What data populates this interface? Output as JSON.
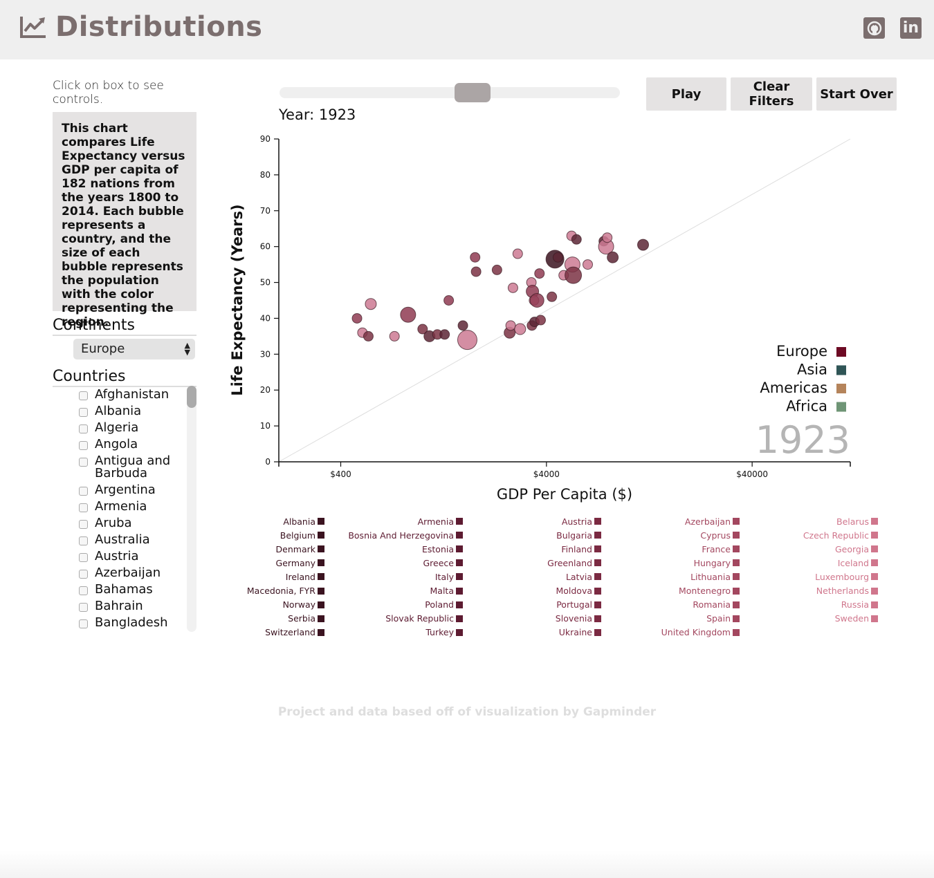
{
  "header": {
    "title": "Distributions",
    "linkedin_label": "in"
  },
  "sidebar": {
    "hint": "Click on box to see controls.",
    "description": "This chart compares Life Expectancy versus GDP per capita of 182 nations from the years 1800 to 2014. Each bubble represents a country, and the size of each bubble represents the population with the color representing the region.",
    "continents_title": "Continents",
    "continent_selected": "Europe",
    "countries_title": "Countries",
    "countries": [
      "Afghanistan",
      "Albania",
      "Algeria",
      "Angola",
      "Antigua and Barbuda",
      "Argentina",
      "Armenia",
      "Aruba",
      "Australia",
      "Austria",
      "Azerbaijan",
      "Bahamas",
      "Bahrain",
      "Bangladesh"
    ]
  },
  "controls": {
    "year_label": "Year: 1923",
    "play_label": "Play",
    "clear_label": "Clear Filters",
    "start_over_label": "Start Over",
    "slider": {
      "min": 1800,
      "max": 2014,
      "value": 1923
    }
  },
  "chart_data": {
    "type": "scatter",
    "title": "",
    "xlabel": "GDP Per Capita ($)",
    "ylabel": "Life Expectancy (Years)",
    "x_scale": "log",
    "xlim": [
      200,
      120000
    ],
    "ylim": [
      0,
      90
    ],
    "x_ticks": [
      400,
      4000,
      40000
    ],
    "x_tick_labels": [
      "$400",
      "$4000",
      "$40000"
    ],
    "y_ticks": [
      0,
      10,
      20,
      30,
      40,
      50,
      60,
      70,
      80,
      90
    ],
    "year_watermark": "1923",
    "legend": [
      {
        "name": "Europe",
        "color": "#6d0a24"
      },
      {
        "name": "Asia",
        "color": "#2f5556"
      },
      {
        "name": "Americas",
        "color": "#b5845b"
      },
      {
        "name": "Africa",
        "color": "#6f9576"
      }
    ],
    "reference_line": {
      "from": [
        200,
        0
      ],
      "to": [
        120000,
        90
      ],
      "color": "#dddddd"
    },
    "points": [
      {
        "x": 480,
        "y": 40,
        "r": 7,
        "c": "#8f3b52"
      },
      {
        "x": 510,
        "y": 36,
        "r": 7,
        "c": "#cc7a93"
      },
      {
        "x": 545,
        "y": 35,
        "r": 7,
        "c": "#7b3244"
      },
      {
        "x": 560,
        "y": 44,
        "r": 8,
        "c": "#cc7a93"
      },
      {
        "x": 730,
        "y": 35,
        "r": 7,
        "c": "#cc7a93"
      },
      {
        "x": 850,
        "y": 41,
        "r": 11,
        "c": "#8f3b52"
      },
      {
        "x": 1000,
        "y": 37,
        "r": 7,
        "c": "#7b3244"
      },
      {
        "x": 1080,
        "y": 35,
        "r": 8,
        "c": "#5d2736"
      },
      {
        "x": 1180,
        "y": 35.5,
        "r": 7,
        "c": "#7b3244"
      },
      {
        "x": 1280,
        "y": 35.5,
        "r": 7,
        "c": "#5d2736"
      },
      {
        "x": 1340,
        "y": 45,
        "r": 7,
        "c": "#8f3b52"
      },
      {
        "x": 1570,
        "y": 38,
        "r": 7,
        "c": "#5d2736"
      },
      {
        "x": 1650,
        "y": 34,
        "r": 14,
        "c": "#cc7a93"
      },
      {
        "x": 1800,
        "y": 57,
        "r": 7,
        "c": "#8f3b52"
      },
      {
        "x": 1820,
        "y": 53,
        "r": 7,
        "c": "#7b3244"
      },
      {
        "x": 2300,
        "y": 53.5,
        "r": 7,
        "c": "#7b3244"
      },
      {
        "x": 2650,
        "y": 36,
        "r": 8,
        "c": "#7b3244"
      },
      {
        "x": 2680,
        "y": 38,
        "r": 7,
        "c": "#cc7a93"
      },
      {
        "x": 2750,
        "y": 48.5,
        "r": 7,
        "c": "#cc7a93"
      },
      {
        "x": 2900,
        "y": 58,
        "r": 7,
        "c": "#cc7a93"
      },
      {
        "x": 2980,
        "y": 37,
        "r": 8,
        "c": "#cc7a93"
      },
      {
        "x": 3380,
        "y": 50,
        "r": 7,
        "c": "#cc7a93"
      },
      {
        "x": 3400,
        "y": 38,
        "r": 7,
        "c": "#7b3244"
      },
      {
        "x": 3420,
        "y": 47.5,
        "r": 9,
        "c": "#8f3b52"
      },
      {
        "x": 3480,
        "y": 45,
        "r": 7,
        "c": "#cc7a93"
      },
      {
        "x": 3500,
        "y": 39,
        "r": 7,
        "c": "#5d2736"
      },
      {
        "x": 3600,
        "y": 45,
        "r": 10,
        "c": "#8f3b52"
      },
      {
        "x": 3700,
        "y": 52.5,
        "r": 7,
        "c": "#8f3b52"
      },
      {
        "x": 3750,
        "y": 39.5,
        "r": 7,
        "c": "#7b3244"
      },
      {
        "x": 4250,
        "y": 46,
        "r": 7,
        "c": "#7b3244"
      },
      {
        "x": 4400,
        "y": 56.5,
        "r": 13,
        "c": "#3b1320"
      },
      {
        "x": 4550,
        "y": 57,
        "r": 7,
        "c": "#5d2736"
      },
      {
        "x": 4850,
        "y": 52,
        "r": 7,
        "c": "#cc7a93"
      },
      {
        "x": 5300,
        "y": 63,
        "r": 7,
        "c": "#cc7a93"
      },
      {
        "x": 5350,
        "y": 55,
        "r": 11,
        "c": "#cc7a93"
      },
      {
        "x": 5400,
        "y": 52,
        "r": 12,
        "c": "#7b3244"
      },
      {
        "x": 5600,
        "y": 62,
        "r": 7,
        "c": "#5d2736"
      },
      {
        "x": 6350,
        "y": 55,
        "r": 7,
        "c": "#cc7a93"
      },
      {
        "x": 7600,
        "y": 61.5,
        "r": 7,
        "c": "#5d2736"
      },
      {
        "x": 7800,
        "y": 60,
        "r": 11,
        "c": "#cc7a93"
      },
      {
        "x": 7900,
        "y": 62.5,
        "r": 7,
        "c": "#cc7a93"
      },
      {
        "x": 8400,
        "y": 57,
        "r": 8,
        "c": "#5d2736"
      },
      {
        "x": 11800,
        "y": 60.5,
        "r": 8,
        "c": "#5d2736"
      }
    ]
  },
  "country_legend": {
    "columns": [
      {
        "color": "#3b1320",
        "items": [
          "Albania",
          "Belgium",
          "Denmark",
          "Germany",
          "Ireland",
          "Macedonia, FYR",
          "Norway",
          "Serbia",
          "Switzerland"
        ]
      },
      {
        "color": "#5d1b31",
        "items": [
          "Armenia",
          "Bosnia And Herzegovina",
          "Estonia",
          "Greece",
          "Italy",
          "Malta",
          "Poland",
          "Slovak Republic",
          "Turkey"
        ]
      },
      {
        "color": "#7b2a42",
        "items": [
          "Austria",
          "Bulgaria",
          "Finland",
          "Greenland",
          "Latvia",
          "Moldova",
          "Portugal",
          "Slovenia",
          "Ukraine"
        ]
      },
      {
        "color": "#a3475f",
        "items": [
          "Azerbaijan",
          "Cyprus",
          "France",
          "Hungary",
          "Lithuania",
          "Montenegro",
          "Romania",
          "Spain",
          "United Kingdom"
        ]
      },
      {
        "color": "#d0768c",
        "items": [
          "Belarus",
          "Czech Republic",
          "Georgia",
          "Iceland",
          "Luxembourg",
          "Netherlands",
          "Russia",
          "Sweden"
        ]
      }
    ]
  },
  "footer": {
    "text": "Project and data based off of visualization by Gapminder"
  }
}
